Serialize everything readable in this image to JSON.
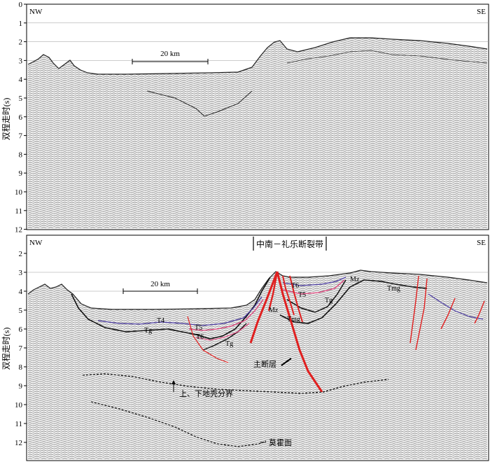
{
  "axis": {
    "ylabel": "双程走时(s)",
    "top_ticks": [
      "0",
      "1",
      "2",
      "3",
      "4",
      "5",
      "6",
      "7",
      "8",
      "9",
      "10",
      "11",
      "12"
    ],
    "bottom_ticks": [
      "2",
      "3",
      "4",
      "5",
      "6",
      "7",
      "8",
      "9",
      "10",
      "11",
      "12"
    ]
  },
  "top_panel": {
    "left_label": "NW",
    "right_label": "SE",
    "scale_bar": "20 km"
  },
  "bottom_panel": {
    "left_label": "NW",
    "right_label": "SE",
    "scale_bar": "20 km",
    "zone_label": "中南－礼乐断裂带",
    "horizons": {
      "tg_left": "Tg",
      "t4_left": "T4",
      "t5_left": "T5",
      "t6_left": "T6",
      "tg_mid": "Tg",
      "t6_right": "T6",
      "t5_right": "T5",
      "tg_right": "Tg",
      "mz_left": "Mz",
      "tmg_left": "Tmg",
      "mz_right": "Mz",
      "tmg_right": "Tmg"
    },
    "annotations": {
      "main_fault": "主断层",
      "crust_boundary": "上、下地壳分界",
      "moho": "莫霍面"
    }
  },
  "colors": {
    "main_fault": "#e02020",
    "horizon_purple": "#4a3aa0",
    "horizon_pink": "#e0407a",
    "horizon_black": "#111111"
  }
}
